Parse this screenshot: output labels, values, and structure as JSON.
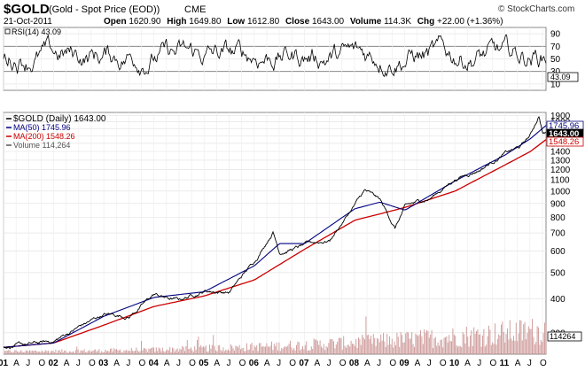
{
  "header": {
    "symbol": "$GOLD",
    "description": "(Gold - Spot Price (EOD))",
    "exchange": "CME",
    "watermark": "© StockCharts.com",
    "date": "21-Oct-2011",
    "open_label": "Open",
    "open": "1620.90",
    "high_label": "High",
    "high": "1649.80",
    "low_label": "Low",
    "low": "1612.80",
    "close_label": "Close",
    "close": "1643.00",
    "volume_label": "Volume",
    "volume": "114.3K",
    "chg_label": "Chg",
    "chg": "+22.00 (+1.36%)"
  },
  "rsi_panel": {
    "legend": "RSI(14) 43.09",
    "current_badge": "43.09",
    "ticks": [
      90,
      70,
      50,
      30,
      10
    ]
  },
  "price_panel": {
    "legend": [
      {
        "text": "$GOLD (Daily) 1643.00",
        "color": "#000000"
      },
      {
        "text": "MA(50) 1745.96",
        "color": "#000080"
      },
      {
        "text": "MA(200) 1548.26",
        "color": "#cc0000"
      },
      {
        "text": "Volume 114,264",
        "color": "#555555"
      }
    ],
    "badges": [
      {
        "text": "1745.96",
        "color": "#000080",
        "value": 1745.96
      },
      {
        "text": "1643.00",
        "color": "#000000",
        "value": 1643.0
      },
      {
        "text": "1548.26",
        "color": "#cc0000",
        "value": 1548.26
      }
    ],
    "volume_badge": "114264"
  },
  "chart_data": {
    "type": "line",
    "x_axis": {
      "start": "2001-01-01",
      "end": "2011-10-21",
      "tick_labels": [
        "01",
        "A",
        "J",
        "O",
        "02",
        "A",
        "J",
        "O",
        "03",
        "A",
        "J",
        "O",
        "04",
        "A",
        "J",
        "O",
        "05",
        "A",
        "J",
        "O",
        "06",
        "A",
        "J",
        "O",
        "07",
        "A",
        "J",
        "O",
        "08",
        "A",
        "J",
        "O",
        "09",
        "A",
        "J",
        "O",
        "10",
        "A",
        "J",
        "O",
        "11",
        "A",
        "J",
        "O"
      ]
    },
    "y_axis": {
      "scale": "log",
      "ticks": [
        1900,
        1800,
        1700,
        1600,
        1500,
        1400,
        1300,
        1200,
        1100,
        1000,
        900,
        800,
        700,
        600,
        500,
        400,
        300
      ],
      "range": [
        250,
        1950
      ]
    },
    "rsi_range": [
      0,
      100
    ],
    "series": [
      {
        "name": "$GOLD (Daily)",
        "color": "#000000",
        "x": [
          2001.0,
          2001.5,
          2002.0,
          2002.5,
          2003.0,
          2003.5,
          2004.0,
          2004.3,
          2004.5,
          2005.0,
          2005.5,
          2006.0,
          2006.37,
          2006.5,
          2007.0,
          2007.5,
          2008.0,
          2008.2,
          2008.5,
          2008.8,
          2009.0,
          2009.5,
          2010.0,
          2010.5,
          2011.0,
          2011.3,
          2011.5,
          2011.67,
          2011.75,
          2011.81
        ],
        "values": [
          268,
          270,
          278,
          315,
          350,
          345,
          415,
          400,
          395,
          430,
          425,
          550,
          715,
          600,
          630,
          660,
          890,
          1000,
          920,
          730,
          870,
          940,
          1110,
          1210,
          1380,
          1450,
          1600,
          1900,
          1630,
          1643
        ]
      },
      {
        "name": "MA(50)",
        "color": "#000080",
        "x": [
          2001.0,
          2002.0,
          2003.0,
          2004.0,
          2005.0,
          2006.0,
          2006.5,
          2007.0,
          2008.0,
          2008.5,
          2009.0,
          2010.0,
          2011.0,
          2011.5,
          2011.81
        ],
        "values": [
          265,
          275,
          345,
          405,
          425,
          530,
          640,
          640,
          860,
          910,
          850,
          1090,
          1360,
          1560,
          1746
        ]
      },
      {
        "name": "MA(200)",
        "color": "#cc0000",
        "x": [
          2001.0,
          2002.0,
          2003.0,
          2004.0,
          2005.0,
          2006.0,
          2007.0,
          2008.0,
          2009.0,
          2010.0,
          2011.0,
          2011.5,
          2011.81
        ],
        "values": [
          265,
          275,
          320,
          375,
          410,
          470,
          610,
          780,
          870,
          1000,
          1250,
          1400,
          1548
        ]
      }
    ],
    "rsi_current": 43.09,
    "volume_current": 114264,
    "grid": true
  }
}
